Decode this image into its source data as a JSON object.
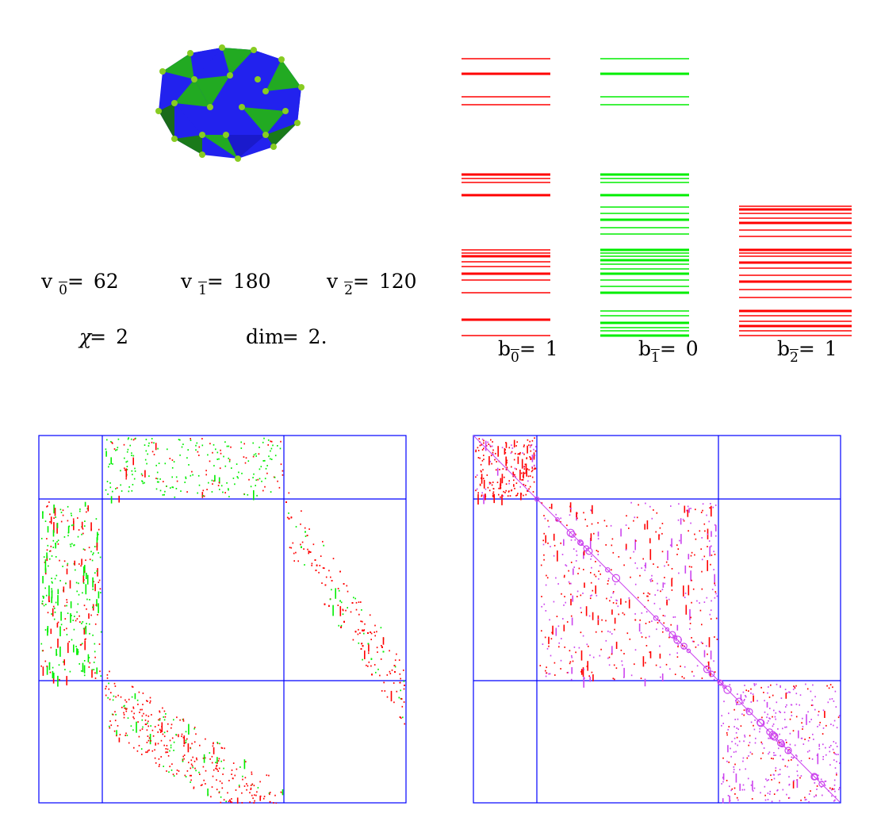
{
  "stats": {
    "v0": {
      "symbol": "v",
      "index": "0",
      "eq": "=",
      "value": "62"
    },
    "v1": {
      "symbol": "v",
      "index": "1",
      "eq": "=",
      "value": "180"
    },
    "v2": {
      "symbol": "v",
      "index": "2",
      "eq": "=",
      "value": "120"
    },
    "chi": {
      "symbol": "χ",
      "eq": "=",
      "value": "2"
    },
    "dim": {
      "symbol": "dim",
      "eq": "=",
      "value": "2."
    }
  },
  "betti": {
    "b0": {
      "symbol": "b",
      "index": "0",
      "eq": "=",
      "value": "1"
    },
    "b1": {
      "symbol": "b",
      "index": "1",
      "eq": "=",
      "value": "0"
    },
    "b2": {
      "symbol": "b",
      "index": "2",
      "eq": "=",
      "value": "1"
    }
  },
  "colors": {
    "spectrum_red": "#ff0000",
    "spectrum_green": "#00ee00",
    "grid_blue": "#0000ff",
    "face_blue": "#2222ee",
    "face_green": "#22aa22",
    "vertex_green": "#88cc22",
    "entry_magenta": "#cc44ee"
  }
}
